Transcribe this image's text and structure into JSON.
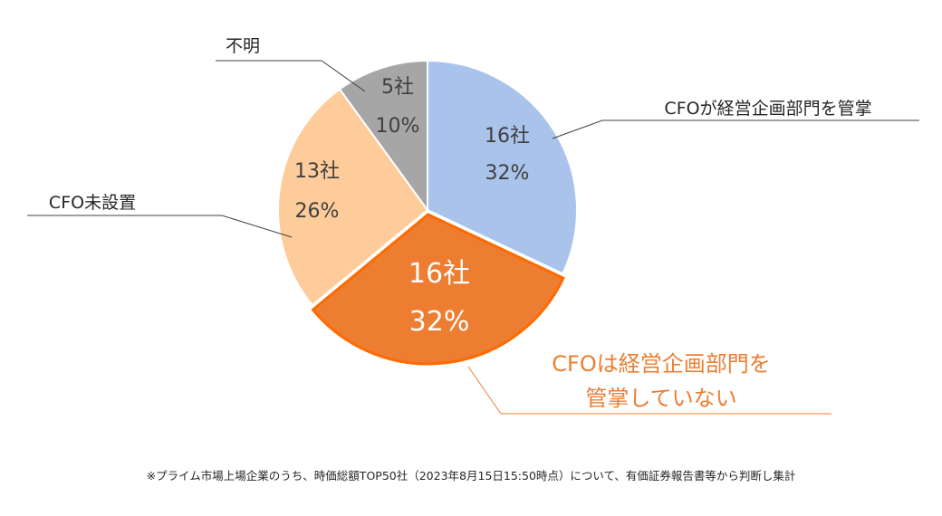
{
  "chart_data": {
    "type": "pie",
    "highlight": "CFOは経営企画部門を管掌していない",
    "slices": [
      {
        "category": "CFOが経営企画部門を管掌",
        "count_label": "16社",
        "percent_label": "32%",
        "value": 16,
        "color": "#a9c3ea"
      },
      {
        "category": "CFOは経営企画部門を管掌していない",
        "category_lines": [
          "CFOは経営企画部門を",
          "管掌していない"
        ],
        "count_label": "16社",
        "percent_label": "32%",
        "value": 16,
        "color": "#ed7d31"
      },
      {
        "category": "CFO未設置",
        "count_label": "13社",
        "percent_label": "26%",
        "value": 13,
        "color": "#fdcc9a"
      },
      {
        "category": "不明",
        "count_label": "5社",
        "percent_label": "10%",
        "value": 5,
        "color": "#a6a6a6"
      }
    ]
  },
  "footnote": "※プライム市場上場企業のうち、時価総額TOP50社（2023年8月15日15:50時点）について、有価証券報告書等から判断し集計"
}
